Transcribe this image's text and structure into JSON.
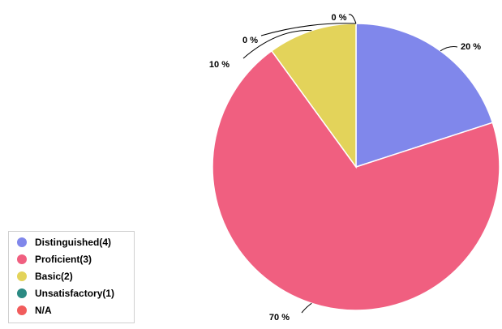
{
  "chart_data": {
    "type": "pie",
    "title": "",
    "legend_position": "bottom-left",
    "series": [
      {
        "name": "Distinguished(4)",
        "value": 20,
        "label": "20 %",
        "color": "#8087eb"
      },
      {
        "name": "Proficient(3)",
        "value": 70,
        "label": "70 %",
        "color": "#f05f80"
      },
      {
        "name": "Basic(2)",
        "value": 10,
        "label": "10 %",
        "color": "#e3d35a"
      },
      {
        "name": "Unsatisfactory(1)",
        "value": 0,
        "label": "0 %",
        "color": "#2b8a83"
      },
      {
        "name": "N/A",
        "value": 0,
        "label": "0 %",
        "color": "#f15c5c"
      }
    ]
  }
}
